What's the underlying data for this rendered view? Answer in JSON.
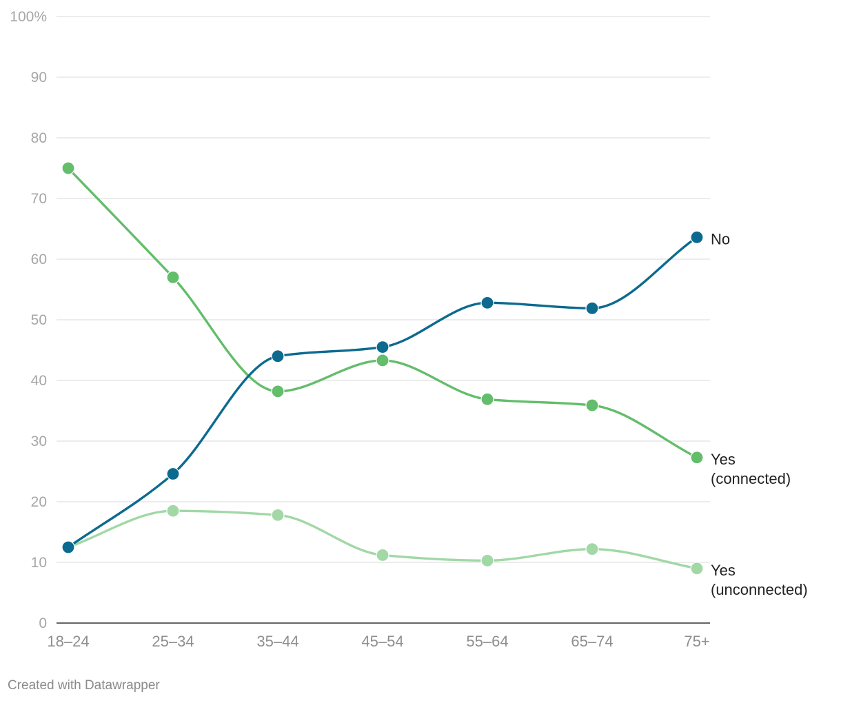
{
  "chart_data": {
    "type": "line",
    "categories": [
      "18–24",
      "25–34",
      "35–44",
      "45–54",
      "55–64",
      "65–74",
      "75+"
    ],
    "ylim": [
      0,
      100
    ],
    "yticks": [
      0,
      10,
      20,
      30,
      40,
      50,
      60,
      70,
      80,
      90,
      100
    ],
    "ytick_labels": [
      "0",
      "10",
      "20",
      "30",
      "40",
      "50",
      "60",
      "70",
      "80",
      "90",
      "100%"
    ],
    "grid": true,
    "legend": "direct labels at line ends (right)",
    "series": [
      {
        "name": "Yes (unconnected)",
        "label_lines": [
          "Yes",
          "(unconnected)"
        ],
        "color": "#a1d8a6",
        "values": [
          12.5,
          18.5,
          17.8,
          11.2,
          10.3,
          12.2,
          9.0
        ]
      },
      {
        "name": "Yes (connected)",
        "label_lines": [
          "Yes",
          "(connected)"
        ],
        "color": "#63bd6a",
        "values": [
          75.0,
          57.0,
          38.2,
          43.3,
          36.9,
          35.9,
          27.3
        ]
      },
      {
        "name": "No",
        "label_lines": [
          "No"
        ],
        "color": "#0c6a8f",
        "values": [
          12.5,
          24.6,
          44.0,
          45.5,
          52.8,
          51.9,
          63.6
        ]
      }
    ]
  },
  "footer": "Created with Datawrapper"
}
